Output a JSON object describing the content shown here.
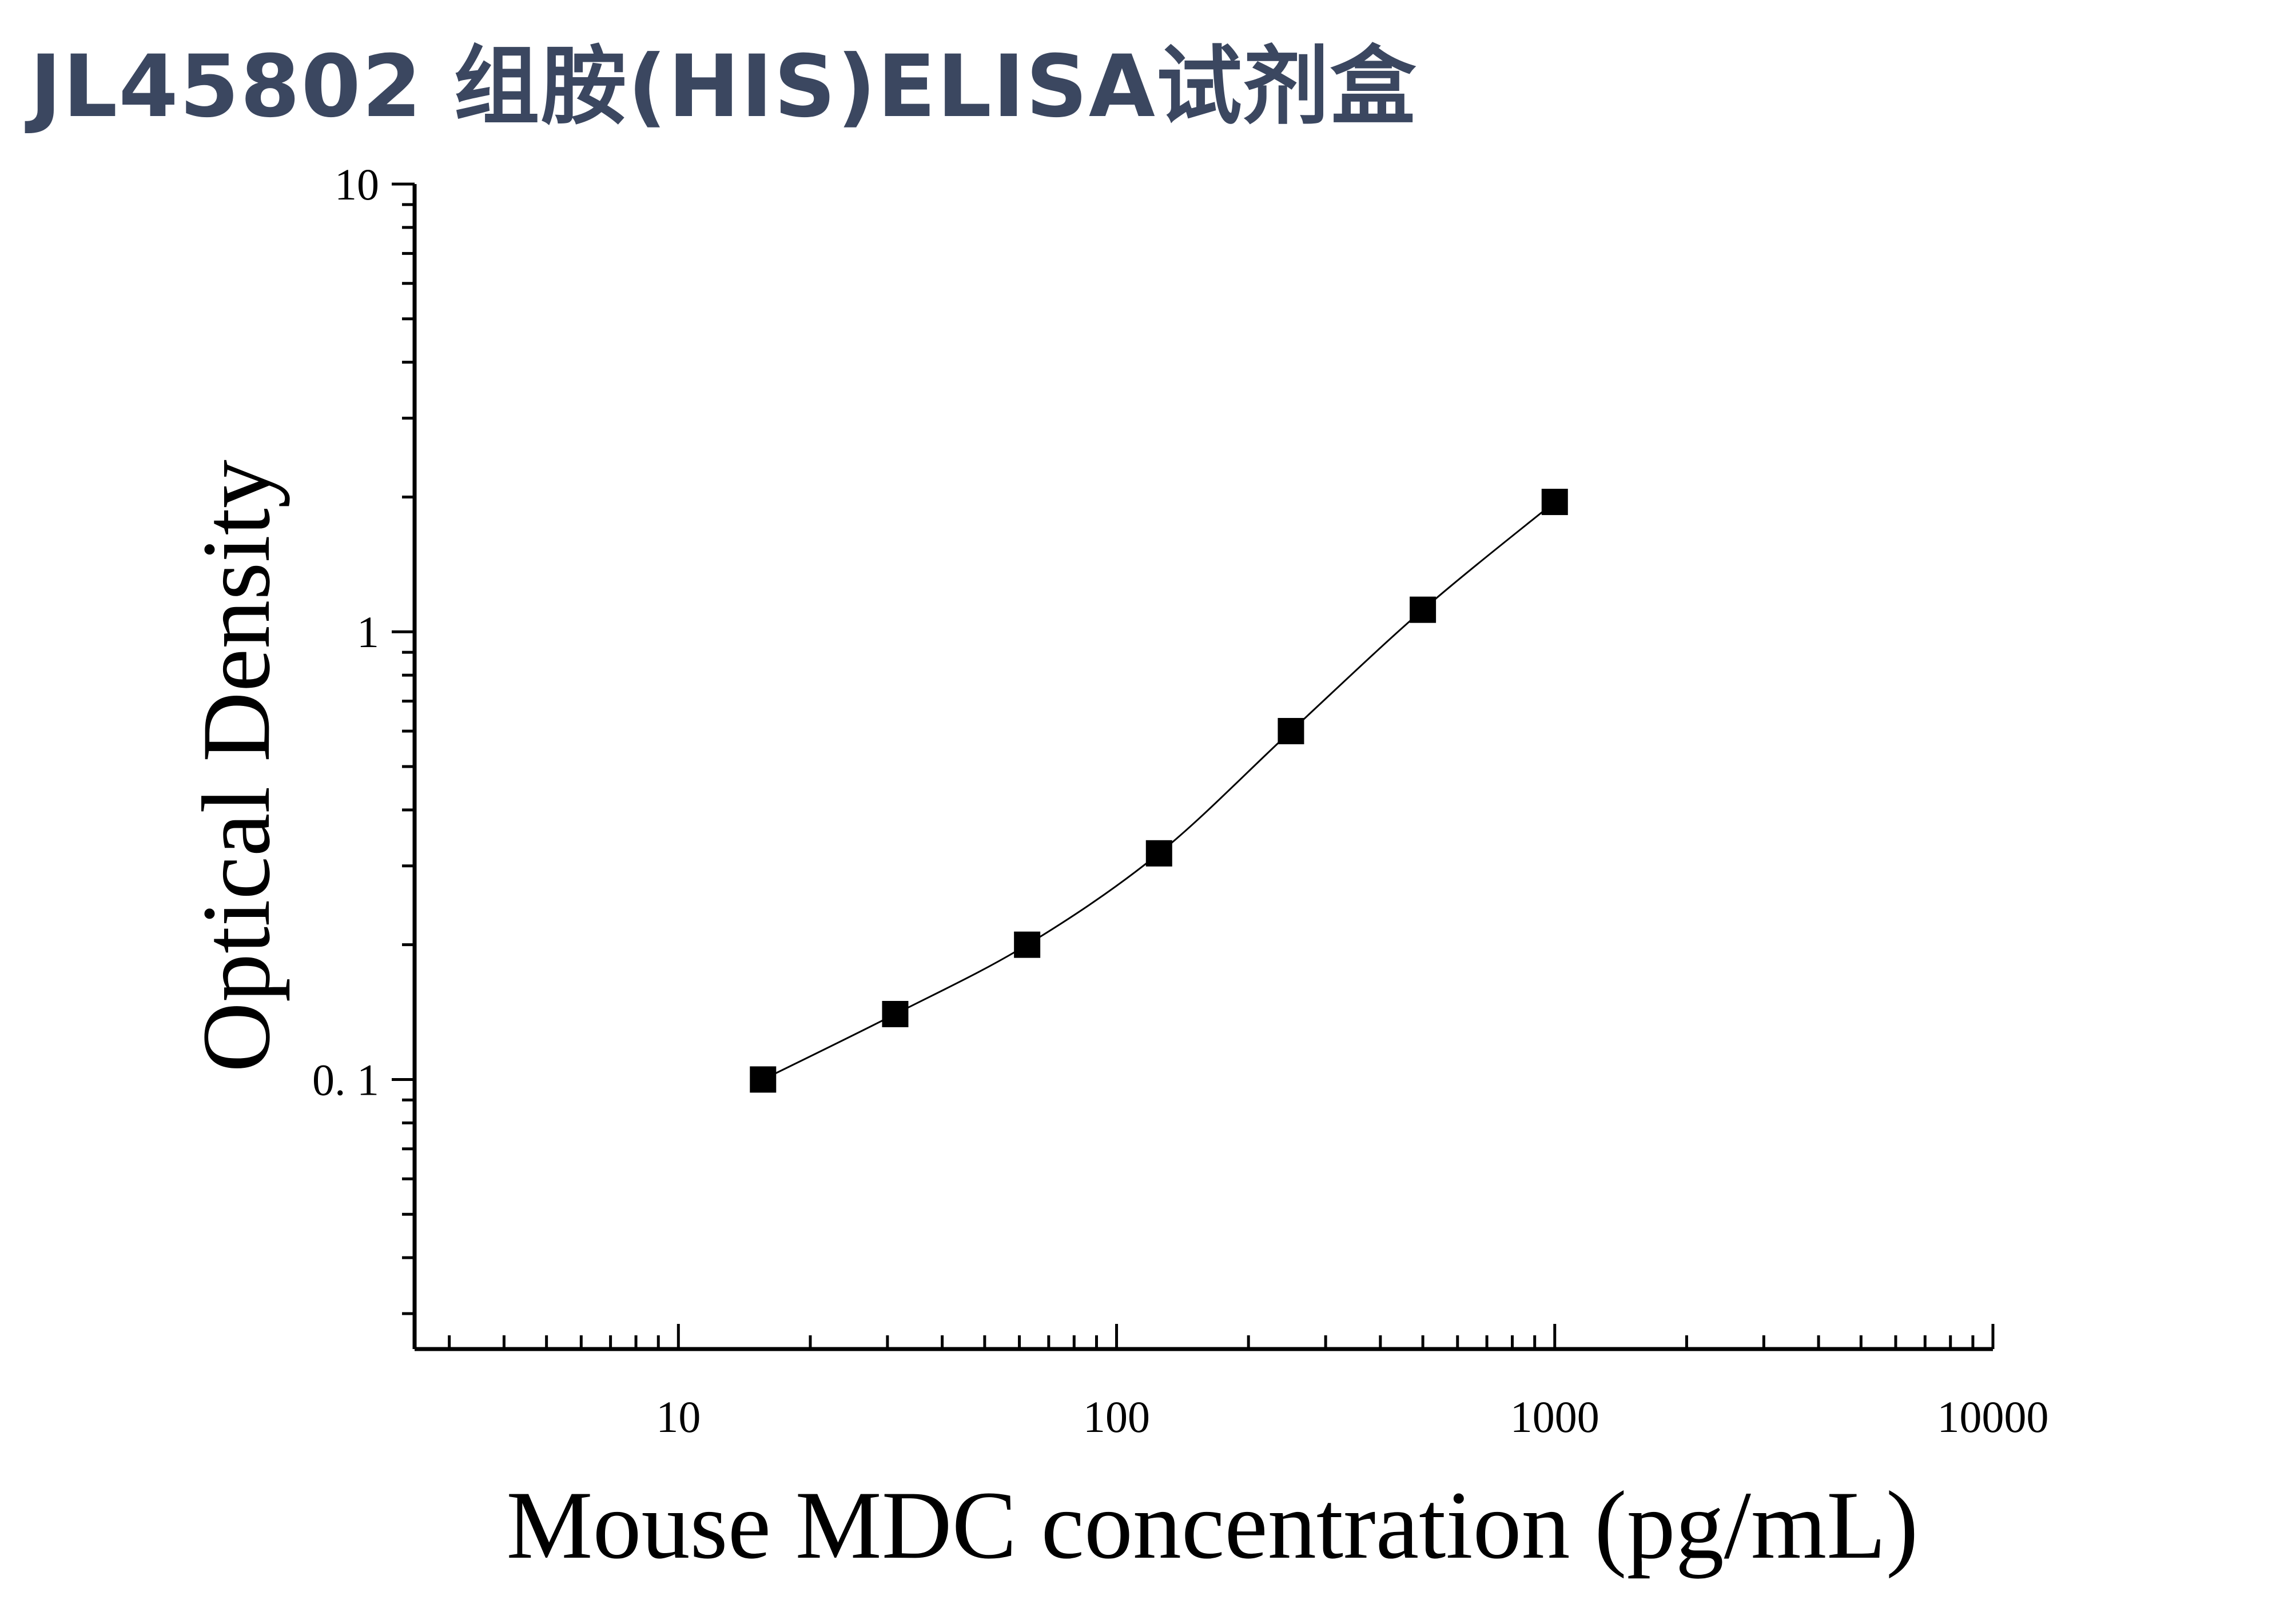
{
  "header": {
    "title": "JL45802 组胺(HIS)ELISA试剂盒"
  },
  "chart_data": {
    "type": "scatter",
    "title": "JL45802 组胺(HIS)ELISA试剂盒",
    "xlabel": "Mouse MDC concentration (pg/mL)",
    "ylabel": "Optical Density",
    "xscale": "log",
    "yscale": "log",
    "xlim": [
      2.5,
      10000
    ],
    "ylim": [
      0.025,
      10
    ],
    "x_ticks": [
      10,
      100,
      1000,
      10000
    ],
    "x_tick_labels": [
      "10",
      "100",
      "1000",
      "10000"
    ],
    "y_ticks": [
      0.1,
      1,
      10
    ],
    "y_tick_labels": [
      "0. 1",
      "1",
      "10"
    ],
    "grid": false,
    "legend": "none",
    "series": [
      {
        "marker": "square",
        "fit_line": true,
        "x": [
          15.6,
          31.25,
          62.5,
          125,
          250,
          500,
          1000
        ],
        "y": [
          0.1,
          0.14,
          0.2,
          0.32,
          0.6,
          1.12,
          1.95
        ]
      }
    ],
    "colors": {
      "title": "#3b4760",
      "marks": "#000000"
    }
  }
}
